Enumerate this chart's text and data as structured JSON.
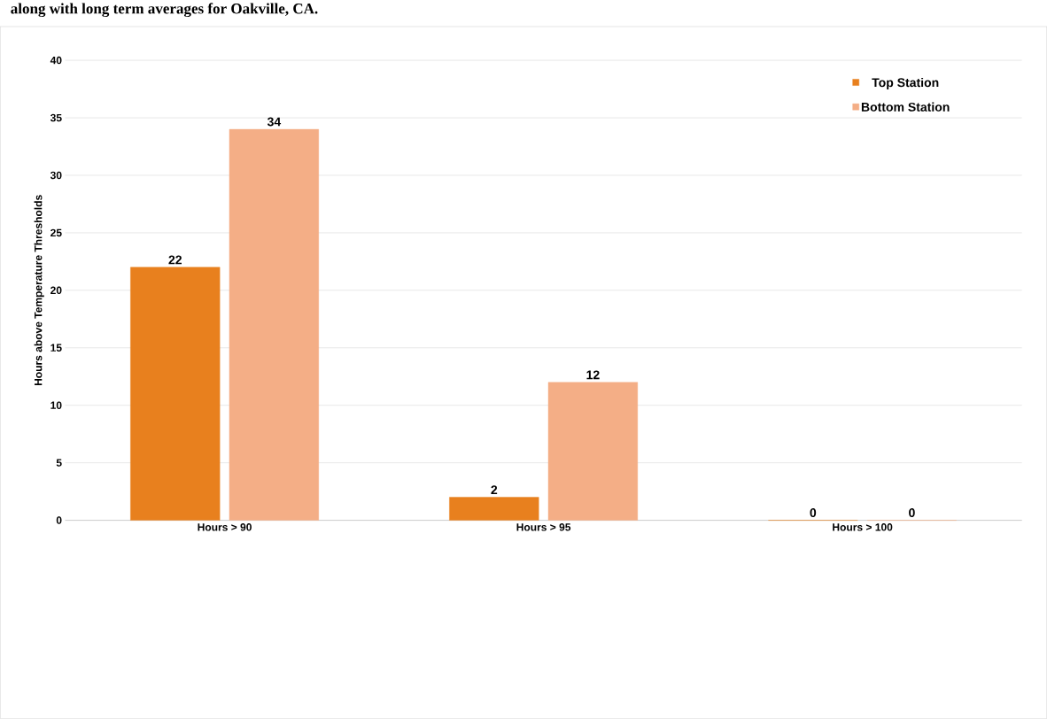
{
  "chart_data": {
    "type": "bar",
    "title": "along with long term averages for Oakville, CA.",
    "ylabel": "Hours above Temperature Thresholds",
    "categories": [
      "Hours > 90",
      "Hours > 95",
      "Hours > 100"
    ],
    "series": [
      {
        "name": "Top Station",
        "color": "#e8801e",
        "values": [
          22,
          2,
          0
        ]
      },
      {
        "name": "Bottom Station",
        "color": "#f4ae86",
        "values": [
          34,
          12,
          0
        ]
      }
    ],
    "ylim": [
      0,
      40
    ],
    "yticks": [
      0,
      5,
      10,
      15,
      20,
      25,
      30,
      35,
      40
    ],
    "grid": "y",
    "legend": "top right",
    "data_labels": true
  }
}
